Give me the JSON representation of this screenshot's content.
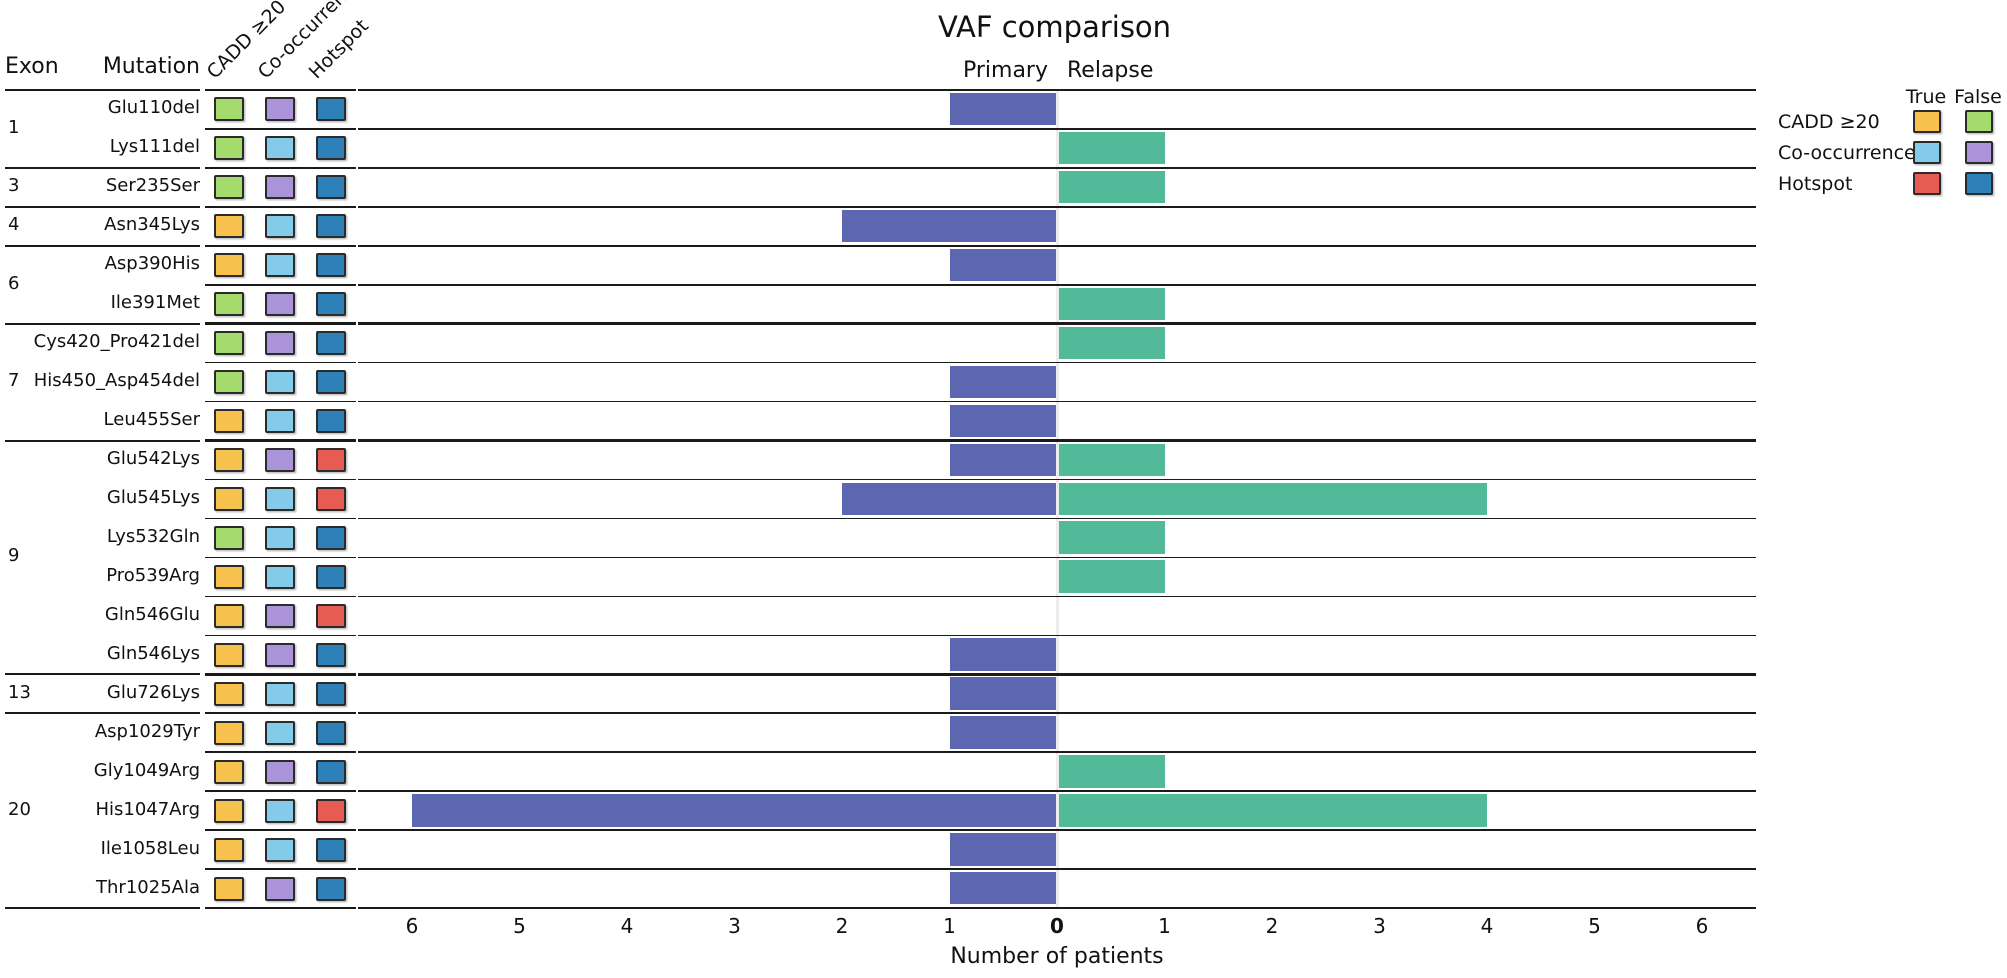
{
  "header": {
    "title": "VAF comparison",
    "primary_label": "Primary",
    "relapse_label": "Relapse"
  },
  "table": {
    "exon_header": "Exon",
    "mutation_header": "Mutation",
    "attr_headers": [
      "CADD ≥20",
      "Co-occurrence",
      "Hotspot"
    ]
  },
  "axis": {
    "xlabel": "Number of patients",
    "left_ticks": [
      6,
      5,
      4,
      3,
      2,
      1
    ],
    "center_tick": "0",
    "right_ticks": [
      1,
      2,
      3,
      4,
      5,
      6
    ]
  },
  "legend": {
    "true_label": "True",
    "false_label": "False",
    "rows": [
      {
        "label": "CADD ≥20",
        "true_color": "#f6c14c",
        "false_color": "#a5db6c"
      },
      {
        "label": "Co-occurrence",
        "true_color": "#84cbe9",
        "false_color": "#ab93d9"
      },
      {
        "label": "Hotspot",
        "true_color": "#e65c52",
        "false_color": "#2e80b9"
      }
    ]
  },
  "colors": {
    "primary_bar": "#5c66b1",
    "relapse_bar": "#52b999",
    "line": "#1a1a1a"
  },
  "chart_data": {
    "type": "bar",
    "orientation": "diverging-horizontal",
    "title": "VAF comparison",
    "xlabel": "Number of patients",
    "series_labels": [
      "Primary",
      "Relapse"
    ],
    "x_units_per_side": 6.5,
    "rows": [
      {
        "exon": "1",
        "mutation": "Glu110del",
        "cadd_ge20": false,
        "co_occurrence": false,
        "hotspot": false,
        "primary": 1,
        "relapse": 0
      },
      {
        "exon": "1",
        "mutation": "Lys111del",
        "cadd_ge20": false,
        "co_occurrence": true,
        "hotspot": false,
        "primary": 0,
        "relapse": 1
      },
      {
        "exon": "3",
        "mutation": "Ser235Ser",
        "cadd_ge20": false,
        "co_occurrence": false,
        "hotspot": false,
        "primary": 0,
        "relapse": 1
      },
      {
        "exon": "4",
        "mutation": "Asn345Lys",
        "cadd_ge20": true,
        "co_occurrence": true,
        "hotspot": false,
        "primary": 2,
        "relapse": 0
      },
      {
        "exon": "6",
        "mutation": "Asp390His",
        "cadd_ge20": true,
        "co_occurrence": true,
        "hotspot": false,
        "primary": 1,
        "relapse": 0
      },
      {
        "exon": "6",
        "mutation": "Ile391Met",
        "cadd_ge20": false,
        "co_occurrence": false,
        "hotspot": false,
        "primary": 0,
        "relapse": 1
      },
      {
        "exon": "7",
        "mutation": "Cys420_Pro421del",
        "cadd_ge20": false,
        "co_occurrence": false,
        "hotspot": false,
        "primary": 0,
        "relapse": 1
      },
      {
        "exon": "7",
        "mutation": "His450_Asp454del",
        "cadd_ge20": false,
        "co_occurrence": true,
        "hotspot": false,
        "primary": 1,
        "relapse": 0
      },
      {
        "exon": "7",
        "mutation": "Leu455Ser",
        "cadd_ge20": true,
        "co_occurrence": true,
        "hotspot": false,
        "primary": 1,
        "relapse": 0
      },
      {
        "exon": "9",
        "mutation": "Glu542Lys",
        "cadd_ge20": true,
        "co_occurrence": false,
        "hotspot": true,
        "primary": 1,
        "relapse": 1
      },
      {
        "exon": "9",
        "mutation": "Glu545Lys",
        "cadd_ge20": true,
        "co_occurrence": true,
        "hotspot": true,
        "primary": 2,
        "relapse": 4
      },
      {
        "exon": "9",
        "mutation": "Lys532Gln",
        "cadd_ge20": false,
        "co_occurrence": true,
        "hotspot": false,
        "primary": 0,
        "relapse": 1
      },
      {
        "exon": "9",
        "mutation": "Pro539Arg",
        "cadd_ge20": true,
        "co_occurrence": true,
        "hotspot": false,
        "primary": 0,
        "relapse": 1
      },
      {
        "exon": "9",
        "mutation": "Gln546Glu",
        "cadd_ge20": true,
        "co_occurrence": false,
        "hotspot": true,
        "primary": 0,
        "relapse": 0
      },
      {
        "exon": "9",
        "mutation": "Gln546Lys",
        "cadd_ge20": true,
        "co_occurrence": false,
        "hotspot": false,
        "primary": 1,
        "relapse": 0
      },
      {
        "exon": "13",
        "mutation": "Glu726Lys",
        "cadd_ge20": true,
        "co_occurrence": true,
        "hotspot": false,
        "primary": 1,
        "relapse": 0
      },
      {
        "exon": "20",
        "mutation": "Asp1029Tyr",
        "cadd_ge20": true,
        "co_occurrence": true,
        "hotspot": false,
        "primary": 1,
        "relapse": 0
      },
      {
        "exon": "20",
        "mutation": "Gly1049Arg",
        "cadd_ge20": true,
        "co_occurrence": false,
        "hotspot": false,
        "primary": 0,
        "relapse": 1
      },
      {
        "exon": "20",
        "mutation": "His1047Arg",
        "cadd_ge20": true,
        "co_occurrence": true,
        "hotspot": true,
        "primary": 6,
        "relapse": 4
      },
      {
        "exon": "20",
        "mutation": "Ile1058Leu",
        "cadd_ge20": true,
        "co_occurrence": true,
        "hotspot": false,
        "primary": 1,
        "relapse": 0
      },
      {
        "exon": "20",
        "mutation": "Thr1025Ala",
        "cadd_ge20": true,
        "co_occurrence": false,
        "hotspot": false,
        "primary": 1,
        "relapse": 0
      }
    ]
  }
}
